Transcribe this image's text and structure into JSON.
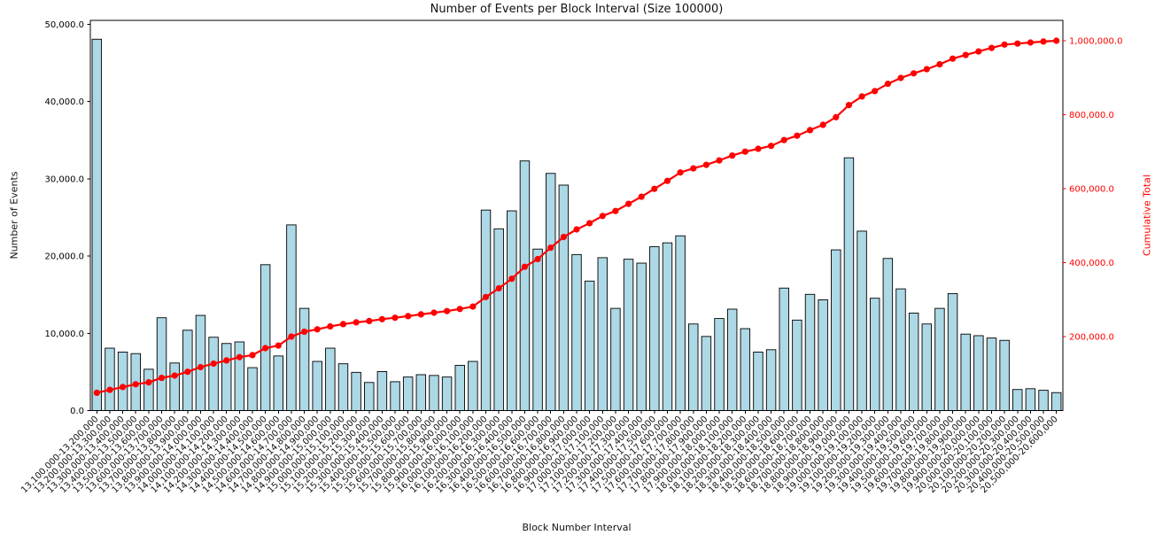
{
  "chart_data": {
    "type": "bar",
    "title": "Number of Events per Block Interval (Size 100000)",
    "xlabel": "Block Number Interval",
    "ylabel_left": "Number of Events",
    "ylabel_right": "Cumulative Total",
    "grid": false,
    "legend": "none",
    "categories": [
      "13,100,000-13,200,000",
      "13,200,000-13,300,000",
      "13,300,000-13,400,000",
      "13,400,000-13,500,000",
      "13,500,000-13,600,000",
      "13,600,000-13,700,000",
      "13,700,000-13,800,000",
      "13,800,000-13,900,000",
      "13,900,000-14,000,000",
      "14,000,000-14,100,000",
      "14,100,000-14,200,000",
      "14,200,000-14,300,000",
      "14,300,000-14,400,000",
      "14,400,000-14,500,000",
      "14,500,000-14,600,000",
      "14,600,000-14,700,000",
      "14,700,000-14,800,000",
      "14,800,000-14,900,000",
      "14,900,000-15,000,000",
      "15,000,000-15,100,000",
      "15,100,000-15,200,000",
      "15,200,000-15,300,000",
      "15,300,000-15,400,000",
      "15,400,000-15,500,000",
      "15,500,000-15,600,000",
      "15,600,000-15,700,000",
      "15,700,000-15,800,000",
      "15,800,000-15,900,000",
      "15,900,000-16,000,000",
      "16,000,000-16,100,000",
      "16,100,000-16,200,000",
      "16,200,000-16,300,000",
      "16,300,000-16,400,000",
      "16,400,000-16,500,000",
      "16,500,000-16,600,000",
      "16,600,000-16,700,000",
      "16,700,000-16,800,000",
      "16,800,000-16,900,000",
      "16,900,000-17,000,000",
      "17,000,000-17,100,000",
      "17,100,000-17,200,000",
      "17,200,000-17,300,000",
      "17,300,000-17,400,000",
      "17,400,000-17,500,000",
      "17,500,000-17,600,000",
      "17,600,000-17,700,000",
      "17,700,000-17,800,000",
      "17,800,000-17,900,000",
      "17,900,000-18,000,000",
      "18,000,000-18,100,000",
      "18,100,000-18,200,000",
      "18,200,000-18,300,000",
      "18,300,000-18,400,000",
      "18,400,000-18,500,000",
      "18,500,000-18,600,000",
      "18,600,000-18,700,000",
      "18,700,000-18,800,000",
      "18,800,000-18,900,000",
      "18,900,000-19,000,000",
      "19,000,000-19,100,000",
      "19,100,000-19,200,000",
      "19,200,000-19,300,000",
      "19,300,000-19,400,000",
      "19,400,000-19,500,000",
      "19,500,000-19,600,000",
      "19,600,000-19,700,000",
      "19,700,000-19,800,000",
      "19,800,000-19,900,000",
      "19,900,000-20,000,000",
      "20,000,000-20,100,000",
      "20,100,000-20,200,000",
      "20,200,000-20,300,000",
      "20,300,000-20,400,000",
      "20,400,000-20,500,000",
      "20,500,000-20,600,000"
    ],
    "series": [
      {
        "name": "Number of Events",
        "type": "bar",
        "axis": "left",
        "color": "#ADD8E6",
        "edge_color": "#000000",
        "values": [
          48061,
          8078,
          7573,
          7371,
          5351,
          12015,
          6159,
          10400,
          12318,
          9491,
          8683,
          8885,
          5553,
          18881,
          7068,
          24031,
          13227,
          6361,
          8078,
          6058,
          4947,
          3635,
          5048,
          3736,
          4342,
          4645,
          4544,
          4342,
          5856,
          6361,
          25949,
          23526,
          25848,
          32310,
          20901,
          30695,
          29180,
          20194,
          16761,
          19790,
          13227,
          19588,
          19083,
          21204,
          21708,
          22617,
          11208,
          9592,
          11914,
          13126,
          10602,
          7573,
          7876,
          15852,
          11712,
          15044,
          14338,
          20800,
          32714,
          23223,
          14540,
          19689,
          15751,
          12621,
          11208,
          13227,
          15145,
          9895,
          9693,
          9390,
          9087,
          2726,
          2827,
          2625,
          2323
        ]
      },
      {
        "name": "Cumulative Total",
        "type": "line",
        "axis": "right",
        "color": "#ff0000",
        "marker": "circle",
        "derived_from": "running_sum_of_events",
        "values": [
          48061,
          56139,
          63712,
          71083,
          76434,
          88449,
          94608,
          105008,
          117326,
          126817,
          135500,
          144385,
          149938,
          168819,
          175887,
          199918,
          213145,
          219506,
          227584,
          233642,
          238589,
          242224,
          247272,
          251008,
          255350,
          259995,
          264539,
          268881,
          274737,
          281098,
          307047,
          330573,
          356421,
          388731,
          409632,
          440327,
          469507,
          489701,
          506462,
          526252,
          539479,
          559067,
          578150,
          599354,
          621062,
          643679,
          654887,
          664479,
          676393,
          689519,
          700121,
          707694,
          715570,
          731422,
          743134,
          758178,
          772516,
          793316,
          826030,
          849253,
          863793,
          883482,
          899233,
          911854,
          923062,
          936289,
          951434,
          961329,
          971022,
          980412,
          989499,
          992225,
          995052,
          997677,
          1000000
        ]
      }
    ],
    "left_axis": {
      "range": [
        0,
        50500
      ],
      "ticks": [
        0,
        10000,
        20000,
        30000,
        40000,
        50000
      ],
      "tick_labels": [
        "0.0",
        "10,000.0",
        "20,000.0",
        "30,000.0",
        "40,000.0",
        "50,000.0"
      ],
      "color": "#000000"
    },
    "right_axis": {
      "range": [
        0,
        1055000
      ],
      "ticks": [
        200000,
        400000,
        600000,
        800000,
        1000000
      ],
      "tick_labels": [
        "200,000.0",
        "400,000.0",
        "600,000.0",
        "800,000.0",
        "1,000,000.0"
      ],
      "color": "#ff0000"
    }
  },
  "colors": {
    "background": "#ffffff",
    "bar_fill": "#ADD8E6",
    "bar_edge": "#000000",
    "cumulative_line": "#ff0000",
    "spine": "#000000",
    "text": "#111111"
  }
}
